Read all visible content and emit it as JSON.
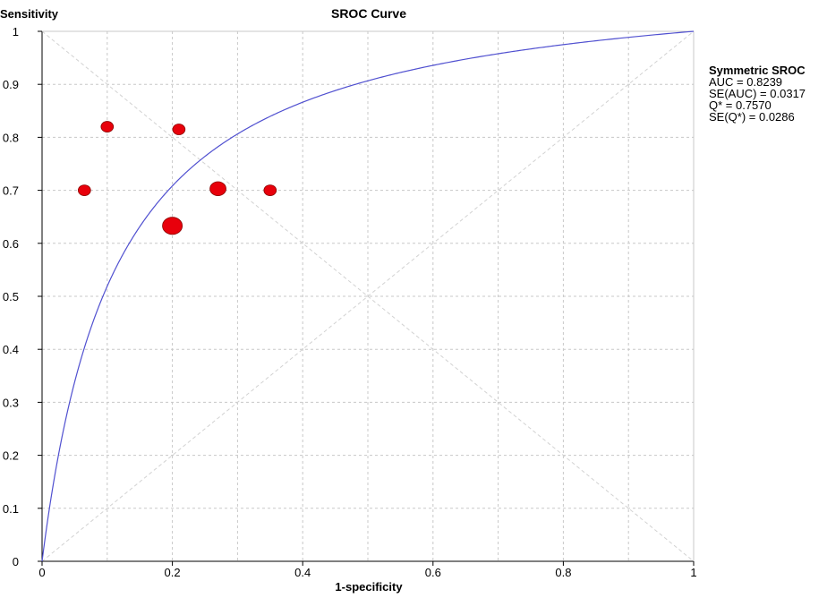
{
  "chart_data": {
    "type": "scatter",
    "title": "SROC Curve",
    "xlabel": "1-specificity",
    "ylabel": "Sensitivity",
    "xlim": [
      0,
      1
    ],
    "ylim": [
      0,
      1
    ],
    "x_ticks": [
      "0",
      "0.2",
      "0.4",
      "0.6",
      "0.8",
      "1"
    ],
    "y_ticks": [
      "0",
      "0.1",
      "0.2",
      "0.3",
      "0.4",
      "0.5",
      "0.6",
      "0.7",
      "0.8",
      "0.9",
      "1"
    ],
    "grid": true,
    "points": [
      {
        "x": 0.065,
        "y": 0.7,
        "weight": 1.0
      },
      {
        "x": 0.1,
        "y": 0.82,
        "weight": 1.0
      },
      {
        "x": 0.21,
        "y": 0.815,
        "weight": 1.0
      },
      {
        "x": 0.2,
        "y": 0.633,
        "weight": 1.6
      },
      {
        "x": 0.27,
        "y": 0.703,
        "weight": 1.3
      },
      {
        "x": 0.35,
        "y": 0.7,
        "weight": 1.0
      }
    ],
    "curve": {
      "type": "symmetric-sroc",
      "auc": 0.8239
    },
    "diagonals": true,
    "colors": {
      "points": "#e8000b",
      "curve": "#5050d0",
      "grid": "#c8c8c8",
      "diagonal": "#d2d2d2"
    }
  },
  "legend": {
    "title": "Symmetric SROC",
    "lines": [
      "AUC = 0.8239",
      "SE(AUC) = 0.0317",
      "Q* = 0.7570",
      "SE(Q*) = 0.0286"
    ]
  }
}
